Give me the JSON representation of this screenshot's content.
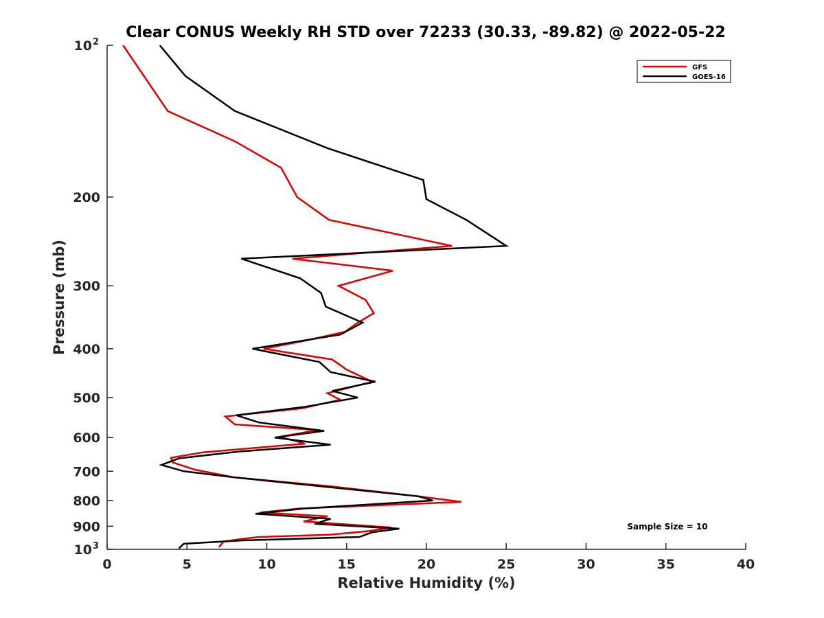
{
  "chart_data": {
    "type": "line",
    "title": "Clear CONUS Weekly RH STD over 72233 (30.33, -89.82) @ 2022-05-22",
    "xlabel": "Relative Humidity (%)",
    "ylabel": "Pressure (mb)",
    "xlim": [
      0,
      40
    ],
    "ylim": [
      100,
      1000
    ],
    "yscale": "log",
    "y_reversed": true,
    "xticks": [
      0,
      5,
      10,
      15,
      20,
      25,
      30,
      35,
      40
    ],
    "xtick_labels": [
      "0",
      "5",
      "10",
      "15",
      "20",
      "25",
      "30",
      "35",
      "40"
    ],
    "yticks": [
      100,
      200,
      300,
      400,
      500,
      600,
      700,
      800,
      900,
      1000
    ],
    "ytick_labels": [
      {
        "base": "10",
        "exp": "2"
      },
      {
        "base": "200",
        "exp": ""
      },
      {
        "base": "300",
        "exp": ""
      },
      {
        "base": "400",
        "exp": ""
      },
      {
        "base": "500",
        "exp": ""
      },
      {
        "base": "600",
        "exp": ""
      },
      {
        "base": "700",
        "exp": ""
      },
      {
        "base": "800",
        "exp": ""
      },
      {
        "base": "900",
        "exp": ""
      },
      {
        "base": "10",
        "exp": "3"
      }
    ],
    "grid": false,
    "legend_position": "top-right",
    "annotation": "Sample Size = 10",
    "series": [
      {
        "name": "GFS",
        "color": "#e00000",
        "points": [
          [
            1.0,
            100
          ],
          [
            2.3,
            115
          ],
          [
            3.8,
            135
          ],
          [
            8.0,
            155
          ],
          [
            10.9,
            175
          ],
          [
            11.9,
            200
          ],
          [
            13.9,
            222
          ],
          [
            21.6,
            250
          ],
          [
            11.6,
            265
          ],
          [
            17.9,
            280
          ],
          [
            14.5,
            300
          ],
          [
            16.2,
            320
          ],
          [
            16.7,
            340
          ],
          [
            15.7,
            355
          ],
          [
            14.9,
            370
          ],
          [
            12.5,
            385
          ],
          [
            9.8,
            400
          ],
          [
            14.1,
            420
          ],
          [
            15.0,
            440
          ],
          [
            16.6,
            465
          ],
          [
            13.8,
            490
          ],
          [
            14.6,
            505
          ],
          [
            12.2,
            525
          ],
          [
            7.4,
            545
          ],
          [
            8.0,
            565
          ],
          [
            13.2,
            580
          ],
          [
            10.8,
            598
          ],
          [
            12.4,
            617
          ],
          [
            8.5,
            632
          ],
          [
            6.0,
            642
          ],
          [
            4.0,
            658
          ],
          [
            4.1,
            672
          ],
          [
            5.5,
            695
          ],
          [
            8.0,
            720
          ],
          [
            14.0,
            750
          ],
          [
            19.5,
            785
          ],
          [
            22.2,
            805
          ],
          [
            12.0,
            830
          ],
          [
            9.6,
            845
          ],
          [
            13.8,
            860
          ],
          [
            12.3,
            880
          ],
          [
            17.8,
            905
          ],
          [
            16.4,
            920
          ],
          [
            14.0,
            935
          ],
          [
            9.5,
            945
          ],
          [
            8.3,
            955
          ],
          [
            7.3,
            965
          ],
          [
            7.0,
            990
          ]
        ]
      },
      {
        "name": "GOES-16",
        "color": "#000000",
        "points": [
          [
            3.3,
            100
          ],
          [
            4.9,
            115
          ],
          [
            8.0,
            135
          ],
          [
            13.8,
            160
          ],
          [
            19.8,
            185
          ],
          [
            20.0,
            202
          ],
          [
            22.5,
            222
          ],
          [
            25.0,
            250
          ],
          [
            8.4,
            265
          ],
          [
            12.1,
            290
          ],
          [
            13.4,
            310
          ],
          [
            13.7,
            330
          ],
          [
            16.0,
            355
          ],
          [
            14.6,
            375
          ],
          [
            9.1,
            400
          ],
          [
            13.3,
            425
          ],
          [
            14.0,
            445
          ],
          [
            16.8,
            465
          ],
          [
            14.1,
            485
          ],
          [
            15.7,
            500
          ],
          [
            12.3,
            522
          ],
          [
            8.1,
            542
          ],
          [
            9.5,
            560
          ],
          [
            13.6,
            582
          ],
          [
            10.5,
            600
          ],
          [
            14.0,
            620
          ],
          [
            8.2,
            640
          ],
          [
            4.5,
            660
          ],
          [
            3.4,
            680
          ],
          [
            4.8,
            700
          ],
          [
            8.0,
            720
          ],
          [
            19.5,
            785
          ],
          [
            20.4,
            800
          ],
          [
            12.3,
            830
          ],
          [
            9.3,
            850
          ],
          [
            14.0,
            870
          ],
          [
            13.0,
            890
          ],
          [
            18.3,
            910
          ],
          [
            16.6,
            925
          ],
          [
            15.8,
            945
          ],
          [
            8.5,
            960
          ],
          [
            4.8,
            975
          ],
          [
            4.5,
            995
          ]
        ]
      }
    ]
  }
}
